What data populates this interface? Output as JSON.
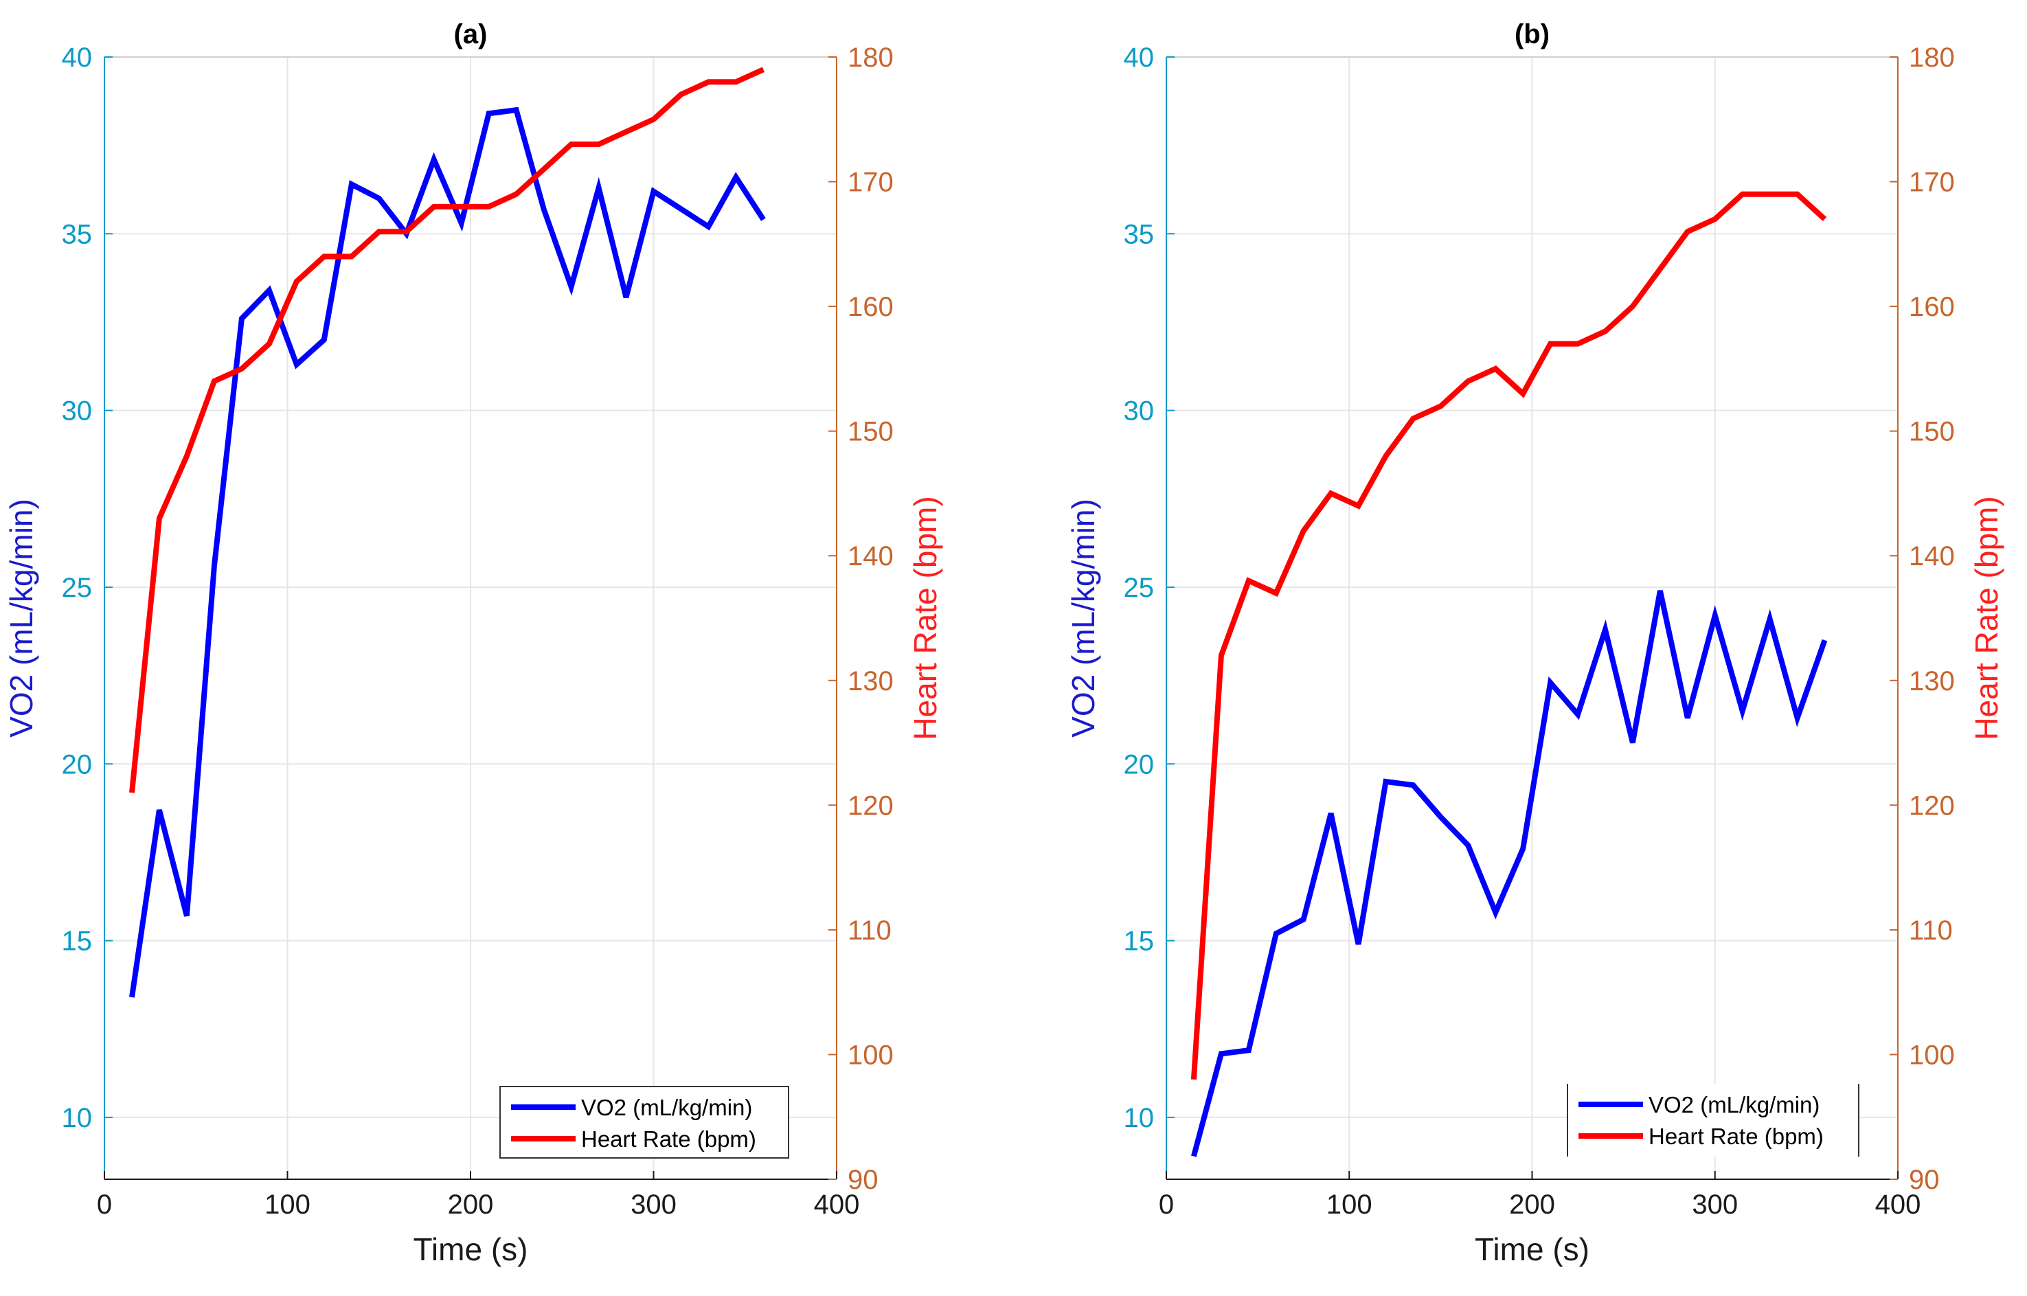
{
  "chart_data": [
    {
      "type": "line",
      "title": "(a)",
      "xlabel": "Time (s)",
      "xlim": [
        0,
        400
      ],
      "xticks": [
        0,
        100,
        200,
        300,
        400
      ],
      "ylabel_left": "VO2 (mL/kg/min)",
      "ylim_left": [
        8.25,
        40
      ],
      "yticks_left": [
        10,
        15,
        20,
        25,
        30,
        35,
        40
      ],
      "ylabel_right": "Heart Rate (bpm)",
      "ylim_right": [
        90,
        180
      ],
      "yticks_right": [
        90,
        100,
        110,
        120,
        130,
        140,
        150,
        160,
        170,
        180
      ],
      "grid": true,
      "legend_position": "bottom-right",
      "series": [
        {
          "name": "VO2 (mL/kg/min)",
          "axis": "left",
          "color": "#0000ff",
          "x": [
            15,
            30,
            45,
            60,
            75,
            90,
            105,
            120,
            135,
            150,
            165,
            180,
            195,
            210,
            225,
            240,
            255,
            270,
            285,
            300,
            315,
            330,
            345,
            360
          ],
          "y": [
            13.4,
            18.7,
            15.7,
            25.6,
            32.6,
            33.4,
            31.3,
            32.0,
            36.4,
            36.0,
            35.0,
            37.1,
            35.3,
            38.4,
            38.5,
            35.7,
            33.5,
            36.3,
            33.2,
            36.2,
            35.7,
            35.2,
            36.6,
            35.4
          ]
        },
        {
          "name": "Heart Rate (bpm)",
          "axis": "right",
          "color": "#ff0000",
          "x": [
            15,
            30,
            45,
            60,
            75,
            90,
            105,
            120,
            135,
            150,
            165,
            180,
            195,
            210,
            225,
            240,
            255,
            270,
            285,
            300,
            315,
            330,
            345,
            360
          ],
          "y": [
            121,
            143,
            148,
            154,
            155,
            157,
            162,
            164,
            164,
            166,
            166,
            168,
            168,
            168,
            169,
            171,
            173,
            173,
            174,
            175,
            177,
            178,
            178,
            179
          ]
        }
      ]
    },
    {
      "type": "line",
      "title": "(b)",
      "xlabel": "Time (s)",
      "xlim": [
        0,
        400
      ],
      "xticks": [
        0,
        100,
        200,
        300,
        400
      ],
      "ylabel_left": "VO2 (mL/kg/min)",
      "ylim_left": [
        8.25,
        40
      ],
      "yticks_left": [
        10,
        15,
        20,
        25,
        30,
        35,
        40
      ],
      "ylabel_right": "Heart Rate (bpm)",
      "ylim_right": [
        90,
        180
      ],
      "yticks_right": [
        90,
        100,
        110,
        120,
        130,
        140,
        150,
        160,
        170,
        180
      ],
      "grid": true,
      "legend_position": "bottom-right",
      "series": [
        {
          "name": "VO2 (mL/kg/min)",
          "axis": "left",
          "color": "#0000ff",
          "x": [
            15,
            30,
            45,
            60,
            75,
            90,
            105,
            120,
            135,
            150,
            165,
            180,
            195,
            210,
            225,
            240,
            255,
            270,
            285,
            300,
            315,
            330,
            345,
            360
          ],
          "y": [
            8.9,
            11.8,
            11.9,
            15.2,
            15.6,
            18.6,
            14.9,
            19.5,
            19.4,
            18.5,
            17.7,
            15.8,
            17.6,
            22.3,
            21.4,
            23.8,
            20.6,
            24.9,
            21.3,
            24.2,
            21.5,
            24.1,
            21.3,
            23.5
          ]
        },
        {
          "name": "Heart Rate (bpm)",
          "axis": "right",
          "color": "#ff0000",
          "x": [
            15,
            30,
            45,
            60,
            75,
            90,
            105,
            120,
            135,
            150,
            165,
            180,
            195,
            210,
            225,
            240,
            255,
            270,
            285,
            300,
            315,
            330,
            345,
            360
          ],
          "y": [
            98,
            132,
            138,
            137,
            142,
            145,
            144,
            148,
            151,
            152,
            154,
            155,
            153,
            157,
            157,
            158,
            160,
            163,
            166,
            167,
            169,
            169,
            169,
            167
          ]
        }
      ]
    }
  ],
  "colors": {
    "left_axis": "#0a9bc8",
    "left_label": "#1a1acc",
    "right_axis": "#c8642d",
    "right_label": "#ff2020",
    "grid": "#e6e6e6",
    "frame": "#1a1a1a"
  }
}
